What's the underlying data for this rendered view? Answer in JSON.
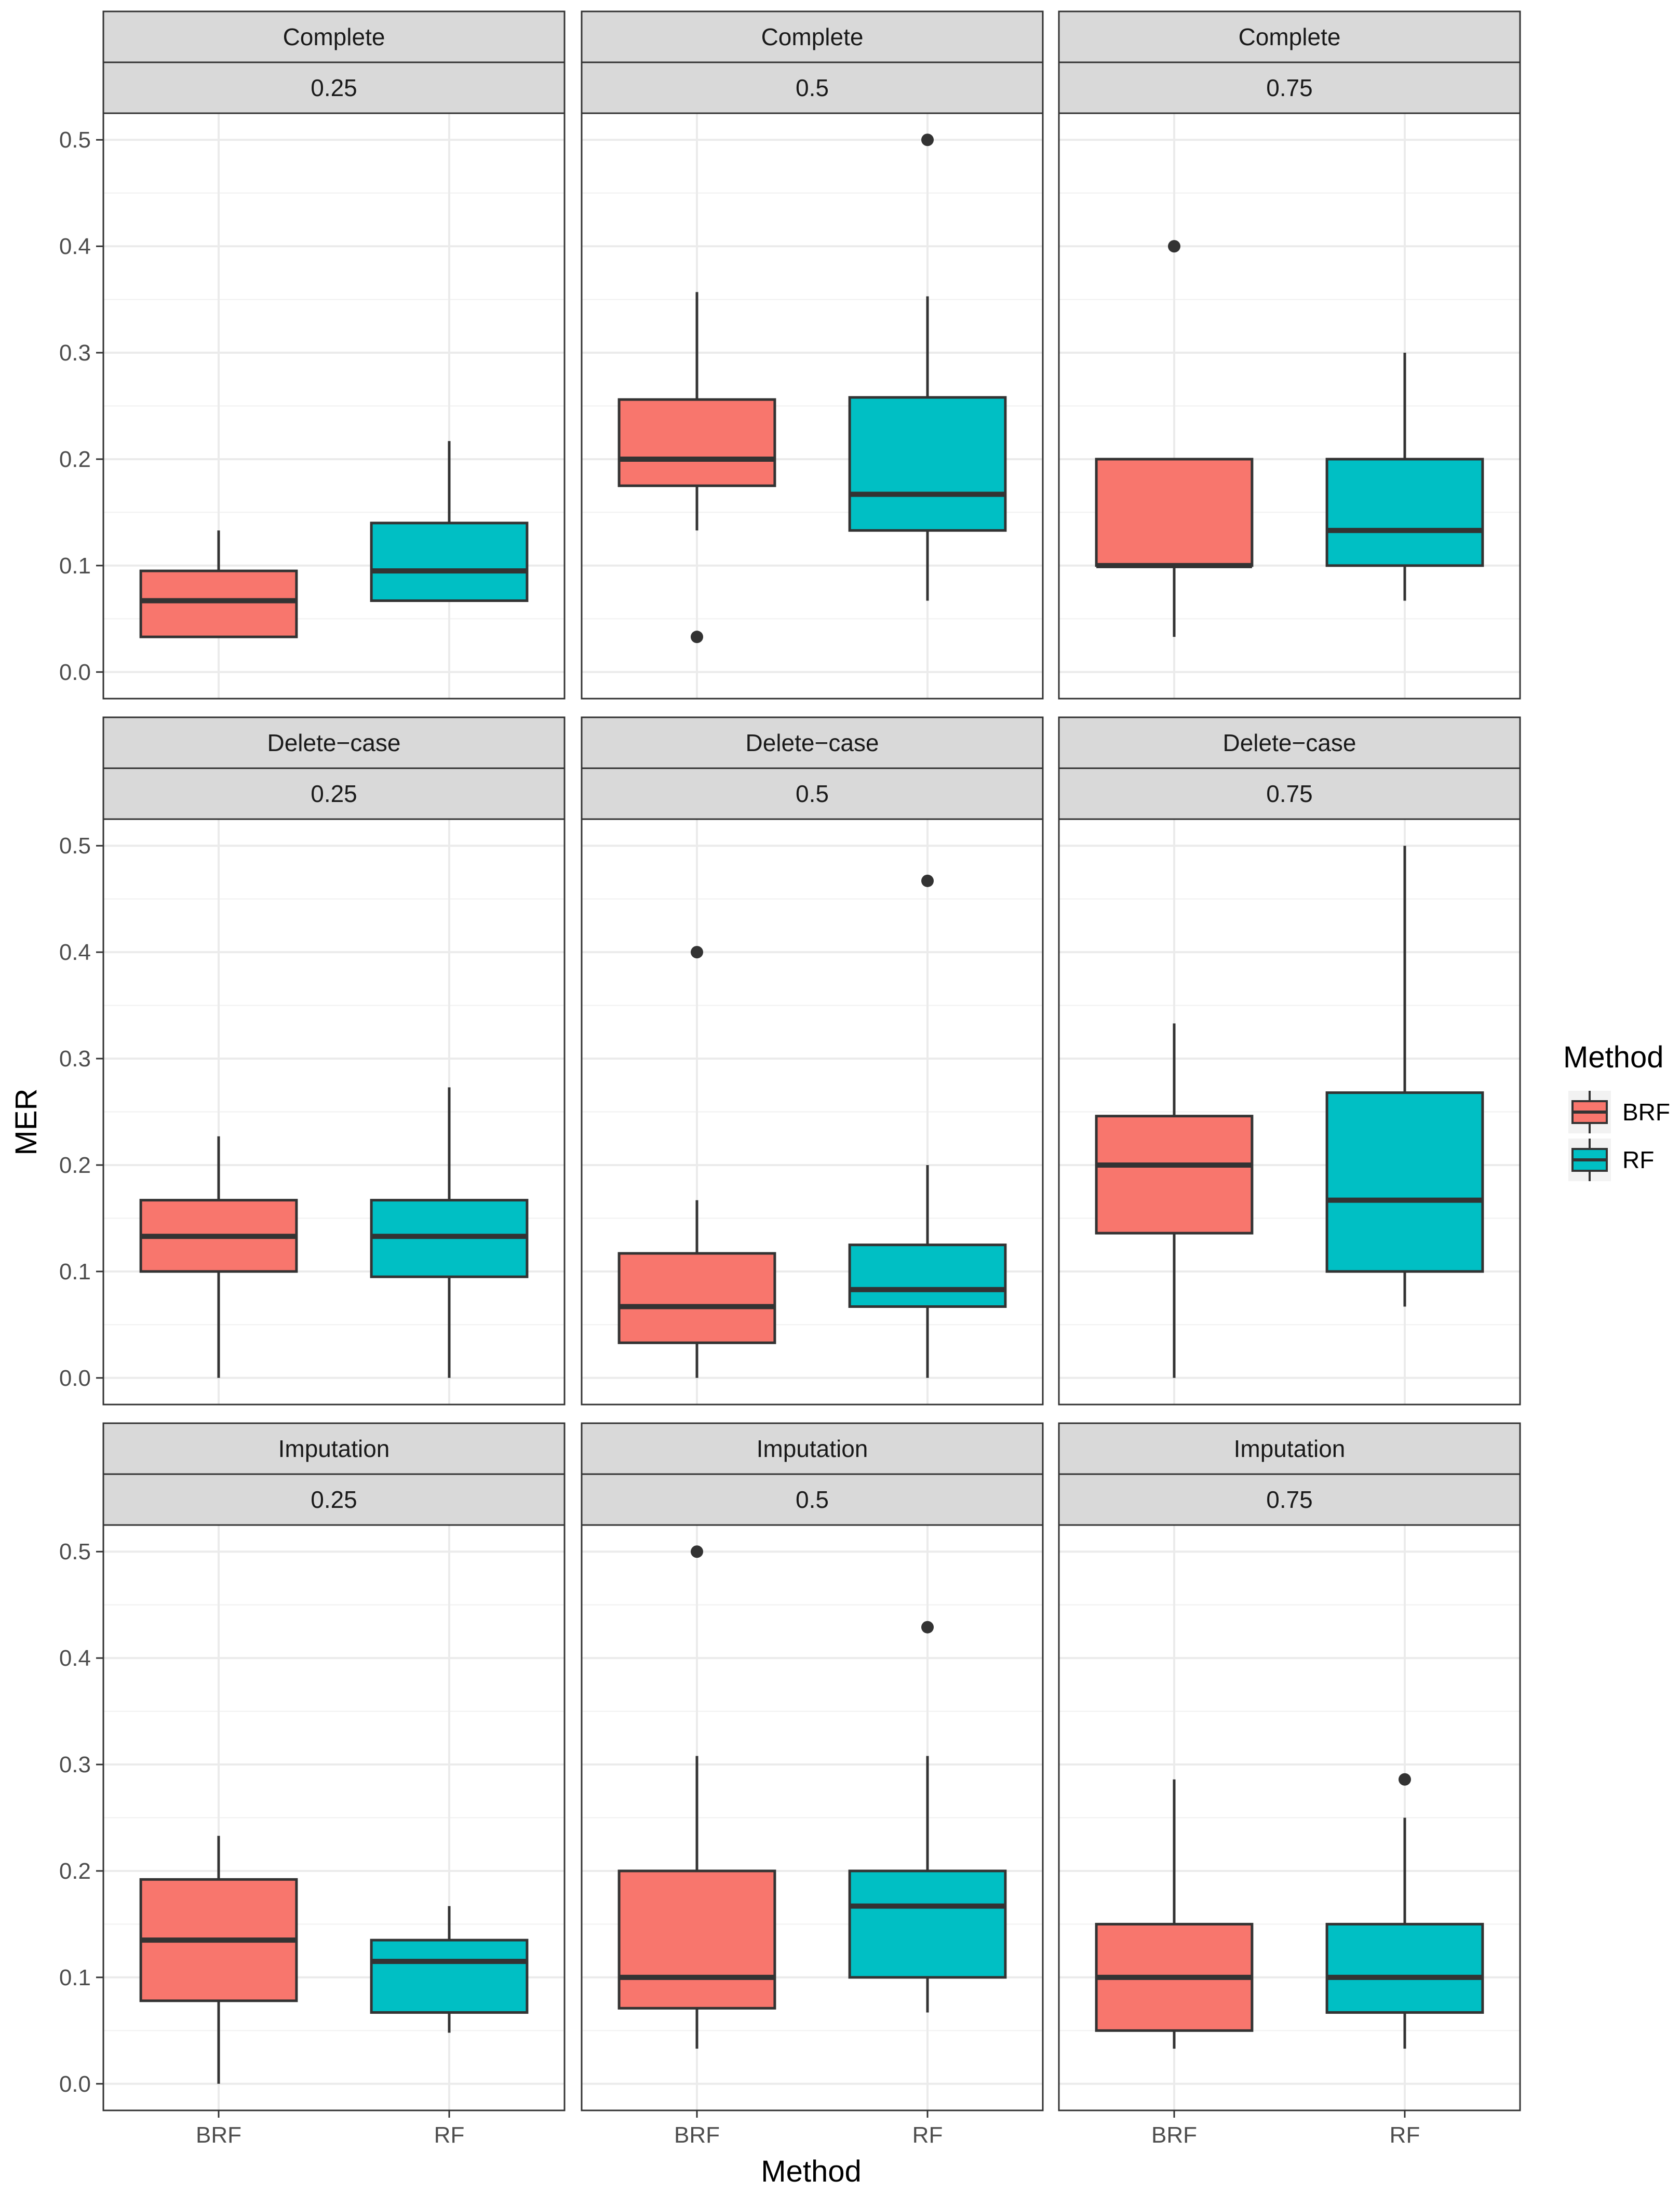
{
  "chart_data": {
    "type": "boxplot",
    "xlabel": "Method",
    "ylabel": "MER",
    "ylim": [
      -0.025,
      0.525
    ],
    "y_ticks": [
      0.0,
      0.1,
      0.2,
      0.3,
      0.4,
      0.5
    ],
    "y_tick_labels": [
      "0.0",
      "0.1",
      "0.2",
      "0.3",
      "0.4",
      "0.5"
    ],
    "categories": [
      "BRF",
      "RF"
    ],
    "grid": true,
    "facet_rows": [
      "Complete",
      "Delete−case",
      "Imputation"
    ],
    "facet_cols": [
      "0.25",
      "0.5",
      "0.75"
    ],
    "legend": {
      "title": "Method",
      "position": "right",
      "entries": [
        {
          "label": "BRF",
          "color": "#F8766D"
        },
        {
          "label": "RF",
          "color": "#00BFC4"
        }
      ]
    },
    "panels": [
      {
        "row": "Complete",
        "col": "0.25",
        "boxes": [
          {
            "category": "BRF",
            "lower_whisker": 0.033,
            "q1": 0.033,
            "median": 0.067,
            "q3": 0.095,
            "upper_whisker": 0.133,
            "outliers": []
          },
          {
            "category": "RF",
            "lower_whisker": 0.067,
            "q1": 0.067,
            "median": 0.095,
            "q3": 0.14,
            "upper_whisker": 0.217,
            "outliers": []
          }
        ]
      },
      {
        "row": "Complete",
        "col": "0.5",
        "boxes": [
          {
            "category": "BRF",
            "lower_whisker": 0.133,
            "q1": 0.175,
            "median": 0.2,
            "q3": 0.256,
            "upper_whisker": 0.357,
            "outliers": [
              0.033
            ]
          },
          {
            "category": "RF",
            "lower_whisker": 0.067,
            "q1": 0.133,
            "median": 0.167,
            "q3": 0.258,
            "upper_whisker": 0.353,
            "outliers": [
              0.5
            ]
          }
        ]
      },
      {
        "row": "Complete",
        "col": "0.75",
        "boxes": [
          {
            "category": "BRF",
            "lower_whisker": 0.033,
            "q1": 0.1,
            "median": 0.1,
            "q3": 0.2,
            "upper_whisker": 0.2,
            "outliers": [
              0.4
            ]
          },
          {
            "category": "RF",
            "lower_whisker": 0.067,
            "q1": 0.1,
            "median": 0.133,
            "q3": 0.2,
            "upper_whisker": 0.3,
            "outliers": []
          }
        ]
      },
      {
        "row": "Delete−case",
        "col": "0.25",
        "boxes": [
          {
            "category": "BRF",
            "lower_whisker": 0.0,
            "q1": 0.1,
            "median": 0.133,
            "q3": 0.167,
            "upper_whisker": 0.227,
            "outliers": []
          },
          {
            "category": "RF",
            "lower_whisker": 0.0,
            "q1": 0.095,
            "median": 0.133,
            "q3": 0.167,
            "upper_whisker": 0.273,
            "outliers": []
          }
        ]
      },
      {
        "row": "Delete−case",
        "col": "0.5",
        "boxes": [
          {
            "category": "BRF",
            "lower_whisker": 0.0,
            "q1": 0.033,
            "median": 0.067,
            "q3": 0.117,
            "upper_whisker": 0.167,
            "outliers": [
              0.4
            ]
          },
          {
            "category": "RF",
            "lower_whisker": 0.0,
            "q1": 0.067,
            "median": 0.083,
            "q3": 0.125,
            "upper_whisker": 0.2,
            "outliers": [
              0.467
            ]
          }
        ]
      },
      {
        "row": "Delete−case",
        "col": "0.75",
        "boxes": [
          {
            "category": "BRF",
            "lower_whisker": 0.0,
            "q1": 0.136,
            "median": 0.2,
            "q3": 0.246,
            "upper_whisker": 0.333,
            "outliers": []
          },
          {
            "category": "RF",
            "lower_whisker": 0.067,
            "q1": 0.1,
            "median": 0.167,
            "q3": 0.268,
            "upper_whisker": 0.5,
            "outliers": []
          }
        ]
      },
      {
        "row": "Imputation",
        "col": "0.25",
        "boxes": [
          {
            "category": "BRF",
            "lower_whisker": 0.0,
            "q1": 0.078,
            "median": 0.135,
            "q3": 0.192,
            "upper_whisker": 0.233,
            "outliers": []
          },
          {
            "category": "RF",
            "lower_whisker": 0.048,
            "q1": 0.067,
            "median": 0.115,
            "q3": 0.135,
            "upper_whisker": 0.167,
            "outliers": []
          }
        ]
      },
      {
        "row": "Imputation",
        "col": "0.5",
        "boxes": [
          {
            "category": "BRF",
            "lower_whisker": 0.033,
            "q1": 0.071,
            "median": 0.1,
            "q3": 0.2,
            "upper_whisker": 0.308,
            "outliers": [
              0.5
            ]
          },
          {
            "category": "RF",
            "lower_whisker": 0.067,
            "q1": 0.1,
            "median": 0.167,
            "q3": 0.2,
            "upper_whisker": 0.308,
            "outliers": [
              0.429
            ]
          }
        ]
      },
      {
        "row": "Imputation",
        "col": "0.75",
        "boxes": [
          {
            "category": "BRF",
            "lower_whisker": 0.033,
            "q1": 0.05,
            "median": 0.1,
            "q3": 0.15,
            "upper_whisker": 0.286,
            "outliers": []
          },
          {
            "category": "RF",
            "lower_whisker": 0.033,
            "q1": 0.067,
            "median": 0.1,
            "q3": 0.15,
            "upper_whisker": 0.25,
            "outliers": [
              0.286
            ]
          }
        ]
      }
    ]
  }
}
